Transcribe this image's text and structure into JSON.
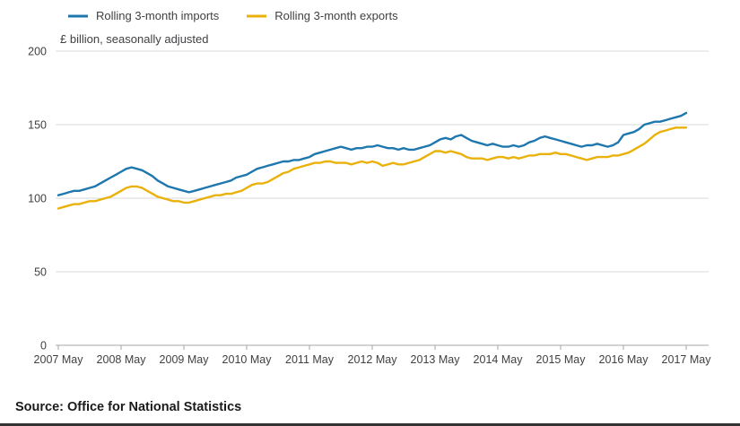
{
  "subtitle": "£ billion, seasonally adjusted",
  "source_note": "Source: Office for National Statistics",
  "chart_data": {
    "type": "line",
    "title": "",
    "subtitle": "£ billion, seasonally adjusted",
    "ylabel": "£ billion",
    "ylim": [
      0,
      200
    ],
    "yticks": [
      0,
      50,
      100,
      150,
      200
    ],
    "grid": "horizontal",
    "legend_position": "top-left",
    "x_unit": "month",
    "x_range": [
      "2007 May",
      "2017 May"
    ],
    "xticklabels": [
      "2007 May",
      "2008 May",
      "2009 May",
      "2010 May",
      "2011 May",
      "2012 May",
      "2013 May",
      "2014 May",
      "2015 May",
      "2016 May",
      "2017 May"
    ],
    "series": [
      {
        "name": "Rolling 3-month imports",
        "color": "#1e77ad",
        "values": [
          102,
          103,
          104,
          105,
          105,
          106,
          107,
          108,
          110,
          112,
          114,
          116,
          118,
          120,
          121,
          120,
          119,
          117,
          115,
          112,
          110,
          108,
          107,
          106,
          105,
          104,
          105,
          106,
          107,
          108,
          109,
          110,
          111,
          112,
          114,
          115,
          116,
          118,
          120,
          121,
          122,
          123,
          124,
          125,
          125,
          126,
          126,
          127,
          128,
          130,
          131,
          132,
          133,
          134,
          135,
          134,
          133,
          134,
          134,
          135,
          135,
          136,
          135,
          134,
          134,
          133,
          134,
          133,
          133,
          134,
          135,
          136,
          138,
          140,
          141,
          140,
          142,
          143,
          141,
          139,
          138,
          137,
          136,
          137,
          136,
          135,
          135,
          136,
          135,
          136,
          138,
          139,
          141,
          142,
          141,
          140,
          139,
          138,
          137,
          136,
          135,
          136,
          136,
          137,
          136,
          135,
          136,
          138,
          143,
          144,
          145,
          147,
          150,
          151,
          152,
          152,
          153,
          154,
          155,
          156,
          158
        ]
      },
      {
        "name": "Rolling 3-month exports",
        "color": "#e9b109",
        "values": [
          93,
          94,
          95,
          96,
          96,
          97,
          98,
          98,
          99,
          100,
          101,
          103,
          105,
          107,
          108,
          108,
          107,
          105,
          103,
          101,
          100,
          99,
          98,
          98,
          97,
          97,
          98,
          99,
          100,
          101,
          102,
          102,
          103,
          103,
          104,
          105,
          107,
          109,
          110,
          110,
          111,
          113,
          115,
          117,
          118,
          120,
          121,
          122,
          123,
          124,
          124,
          125,
          125,
          124,
          124,
          124,
          123,
          124,
          125,
          124,
          125,
          124,
          122,
          123,
          124,
          123,
          123,
          124,
          125,
          126,
          128,
          130,
          132,
          132,
          131,
          132,
          131,
          130,
          128,
          127,
          127,
          127,
          126,
          127,
          128,
          128,
          127,
          128,
          127,
          128,
          129,
          129,
          130,
          130,
          130,
          131,
          130,
          130,
          129,
          128,
          127,
          126,
          127,
          128,
          128,
          128,
          129,
          129,
          130,
          131,
          133,
          135,
          137,
          140,
          143,
          145,
          146,
          147,
          148,
          148,
          148
        ]
      }
    ]
  }
}
